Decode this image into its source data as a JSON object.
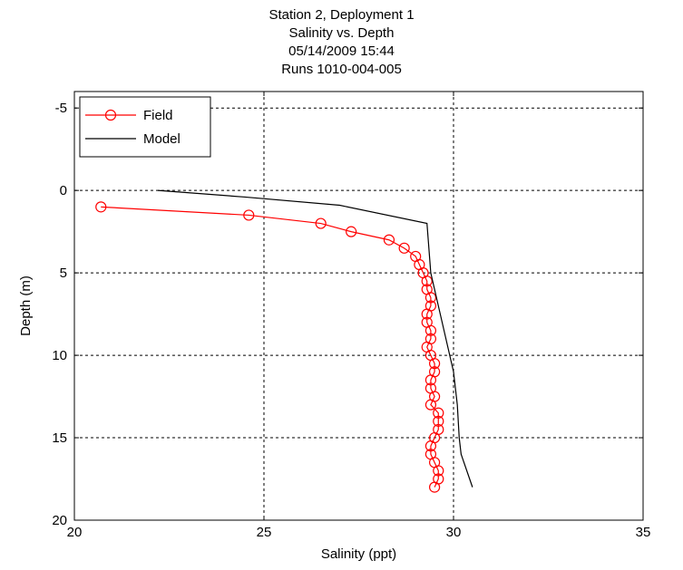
{
  "chart_data": {
    "type": "line",
    "title": [
      "Station 2, Deployment 1",
      "Salinity vs. Depth",
      "05/14/2009 15:44",
      "Runs 1010-004-005"
    ],
    "xlabel": "Salinity (ppt)",
    "ylabel": "Depth (m)",
    "xlim": [
      20,
      35
    ],
    "ylim": [
      -6,
      20
    ],
    "y_reversed": true,
    "xticks": [
      20,
      25,
      30,
      35
    ],
    "yticks": [
      -5,
      0,
      5,
      10,
      15,
      20
    ],
    "grid": true,
    "legend_position": "top-left",
    "series": [
      {
        "name": "Field",
        "color": "#ff0000",
        "marker": "circle-open",
        "points": [
          [
            20.7,
            1.0
          ],
          [
            24.6,
            1.5
          ],
          [
            26.5,
            2.0
          ],
          [
            27.3,
            2.5
          ],
          [
            28.3,
            3.0
          ],
          [
            28.7,
            3.5
          ],
          [
            29.0,
            4.0
          ],
          [
            29.1,
            4.5
          ],
          [
            29.2,
            5.0
          ],
          [
            29.3,
            5.5
          ],
          [
            29.3,
            6.0
          ],
          [
            29.4,
            6.5
          ],
          [
            29.4,
            7.0
          ],
          [
            29.3,
            7.5
          ],
          [
            29.3,
            8.0
          ],
          [
            29.4,
            8.5
          ],
          [
            29.4,
            9.0
          ],
          [
            29.3,
            9.5
          ],
          [
            29.4,
            10.0
          ],
          [
            29.5,
            10.5
          ],
          [
            29.5,
            11.0
          ],
          [
            29.4,
            11.5
          ],
          [
            29.4,
            12.0
          ],
          [
            29.5,
            12.5
          ],
          [
            29.4,
            13.0
          ],
          [
            29.6,
            13.5
          ],
          [
            29.6,
            14.0
          ],
          [
            29.6,
            14.5
          ],
          [
            29.5,
            15.0
          ],
          [
            29.4,
            15.5
          ],
          [
            29.4,
            16.0
          ],
          [
            29.5,
            16.5
          ],
          [
            29.6,
            17.0
          ],
          [
            29.6,
            17.5
          ],
          [
            29.5,
            18.0
          ]
        ]
      },
      {
        "name": "Model",
        "color": "#000000",
        "marker": "none",
        "points": [
          [
            22.2,
            0.0
          ],
          [
            24.5,
            0.4
          ],
          [
            27.0,
            0.9
          ],
          [
            29.3,
            2.0
          ],
          [
            29.4,
            5.0
          ],
          [
            29.6,
            7.0
          ],
          [
            29.8,
            9.0
          ],
          [
            30.0,
            11.0
          ],
          [
            30.1,
            13.0
          ],
          [
            30.15,
            15.0
          ],
          [
            30.2,
            16.0
          ],
          [
            30.5,
            18.0
          ]
        ]
      }
    ]
  }
}
